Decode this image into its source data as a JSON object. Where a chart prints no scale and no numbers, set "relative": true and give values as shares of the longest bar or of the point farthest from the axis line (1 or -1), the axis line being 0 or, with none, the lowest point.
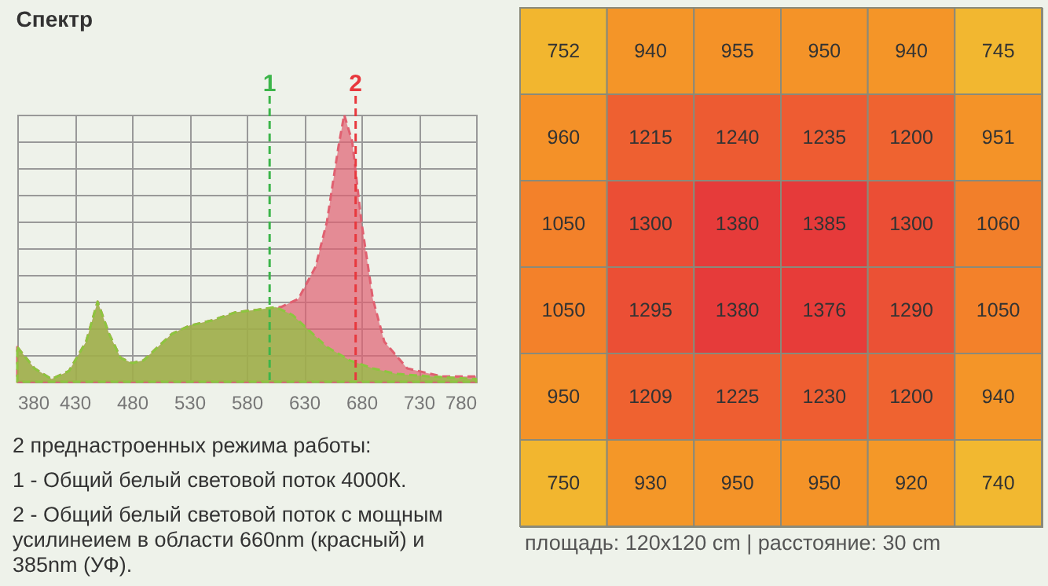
{
  "chart_data": [
    {
      "type": "area",
      "title": "Спектр",
      "relative": true,
      "grid": true,
      "line_style": "dashed",
      "xlim": [
        380,
        780
      ],
      "xticks": [
        380,
        430,
        480,
        530,
        580,
        630,
        680,
        730,
        780
      ],
      "series": [
        {
          "color": "#e06070",
          "x": [
            380,
            395,
            410,
            425,
            440,
            450,
            460,
            470,
            480,
            490,
            500,
            515,
            530,
            550,
            570,
            590,
            610,
            625,
            640,
            650,
            660,
            665,
            672,
            680,
            690,
            700,
            720,
            750,
            780
          ],
          "values": [
            0.13,
            0.05,
            0.01,
            0.04,
            0.15,
            0.3,
            0.18,
            0.09,
            0.07,
            0.08,
            0.12,
            0.18,
            0.21,
            0.23,
            0.26,
            0.27,
            0.28,
            0.31,
            0.43,
            0.6,
            0.88,
            1,
            0.9,
            0.6,
            0.31,
            0.15,
            0.05,
            0.02,
            0.02
          ]
        },
        {
          "color": "#8cc63f",
          "x": [
            380,
            395,
            410,
            425,
            440,
            450,
            460,
            470,
            480,
            490,
            500,
            515,
            530,
            550,
            570,
            590,
            605,
            620,
            635,
            650,
            670,
            690,
            710,
            740,
            780
          ],
          "values": [
            0.13,
            0.05,
            0.01,
            0.04,
            0.15,
            0.3,
            0.18,
            0.09,
            0.07,
            0.08,
            0.12,
            0.18,
            0.21,
            0.23,
            0.26,
            0.27,
            0.28,
            0.25,
            0.19,
            0.13,
            0.08,
            0.05,
            0.03,
            0.02,
            0.01
          ]
        }
      ],
      "ref_lines": [
        {
          "axis": "x",
          "value": 600,
          "color": "#3cb54a",
          "line_style": "dashed"
        },
        {
          "axis": "x",
          "value": 675,
          "color": "#e8383d",
          "line_style": "dashed"
        }
      ],
      "annotations": [
        "1",
        "2",
        "2 преднастроенных режима работы:",
        "1 - Общий белый световой поток 4000К.",
        "2 - Общий белый световой поток с мощным усилинеием в области 660nm (красный) и  385nm (УФ)."
      ]
    },
    {
      "type": "heatmap",
      "data_labels": true,
      "categories": [
        null,
        null,
        null,
        null,
        null,
        null
      ],
      "y_categories": [
        null,
        null,
        null,
        null,
        null,
        null
      ],
      "cells": [
        [
          752,
          940,
          955,
          950,
          940,
          745
        ],
        [
          960,
          1215,
          1240,
          1235,
          1200,
          951
        ],
        [
          1050,
          1300,
          1380,
          1385,
          1300,
          1060
        ],
        [
          1050,
          1295,
          1380,
          1376,
          1290,
          1050
        ],
        [
          950,
          1209,
          1225,
          1230,
          1200,
          940
        ],
        [
          750,
          930,
          950,
          950,
          920,
          740
        ]
      ],
      "annotations": [
        "площадь: 120x120 cm | расстояние: 30 cm"
      ]
    }
  ]
}
